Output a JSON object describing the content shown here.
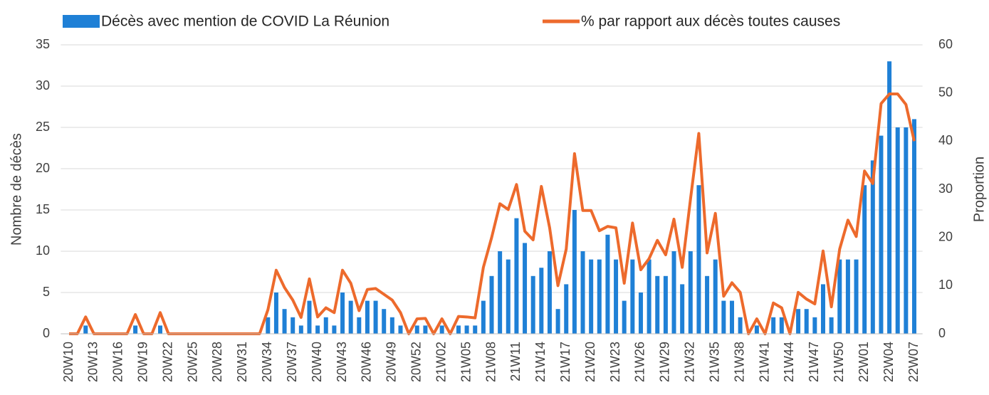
{
  "chart_data": {
    "type": "bar-line",
    "ylabel": "Nombre de décès",
    "y2label": "Proportion",
    "categories": [
      "20W10",
      null,
      null,
      "20W13",
      null,
      null,
      "20W16",
      null,
      null,
      "20W19",
      null,
      null,
      "20W22",
      null,
      null,
      "20W25",
      null,
      null,
      "20W28",
      null,
      null,
      "20W31",
      null,
      null,
      "20W34",
      null,
      null,
      "20W37",
      null,
      null,
      "20W40",
      null,
      null,
      "20W43",
      null,
      null,
      "20W46",
      null,
      null,
      "20W49",
      null,
      null,
      "20W52",
      null,
      null,
      "21W02",
      null,
      null,
      "21W05",
      null,
      null,
      "21W08",
      null,
      null,
      "21W11",
      null,
      null,
      "21W14",
      null,
      null,
      "21W17",
      null,
      null,
      "21W20",
      null,
      null,
      "21W23",
      null,
      null,
      "21W26",
      null,
      null,
      "21W29",
      null,
      null,
      "21W32",
      null,
      null,
      "21W35",
      null,
      null,
      "21W38",
      null,
      null,
      "21W41",
      null,
      null,
      "21W44",
      null,
      null,
      "21W47",
      null,
      null,
      "21W50",
      null,
      null,
      "22W01",
      null,
      null,
      "22W04",
      null,
      null,
      "22W07"
    ],
    "series": [
      {
        "name": "Décès avec mention de COVID La Réunion",
        "type": "bar",
        "color": "#1f80d6",
        "values": [
          0,
          0,
          1,
          0,
          0,
          0,
          0,
          0,
          1,
          0,
          0,
          1,
          0,
          0,
          0,
          0,
          0,
          0,
          0,
          0,
          0,
          0,
          0,
          0,
          2,
          5,
          3,
          2,
          1,
          4,
          1,
          2,
          1,
          5,
          4,
          2,
          4,
          4,
          3,
          2,
          1,
          0,
          1,
          1,
          0,
          1,
          0,
          1,
          1,
          1,
          4,
          7,
          10,
          9,
          14,
          11,
          7,
          8,
          10,
          3,
          6,
          15,
          10,
          9,
          9,
          12,
          9,
          4,
          9,
          5,
          9,
          7,
          7,
          10,
          6,
          10,
          18,
          7,
          9,
          4,
          4,
          2,
          0,
          1,
          0,
          2,
          2,
          0,
          3,
          3,
          2,
          6,
          2,
          9,
          9,
          9,
          18,
          21,
          24,
          33,
          25,
          25,
          26
        ]
      },
      {
        "name": "% par rapport aux décès toutes causes",
        "type": "line",
        "axis": "y2",
        "color": "#ed6a2c",
        "values": [
          0,
          0,
          3.5,
          0,
          0,
          0,
          0,
          0,
          4,
          0,
          0,
          4.4,
          0,
          0,
          0,
          0,
          0,
          0,
          0,
          0,
          0,
          0,
          0,
          0,
          5,
          13.2,
          9.6,
          7,
          3.4,
          11.4,
          3.5,
          5.4,
          4.4,
          13.2,
          10.5,
          4.8,
          9.2,
          9.4,
          8.2,
          7,
          4.4,
          0,
          3.1,
          3.2,
          0,
          3.1,
          0,
          3.6,
          3.5,
          3.3,
          13.8,
          20,
          27,
          25.8,
          31,
          21.3,
          19.5,
          30.6,
          22,
          10,
          17.6,
          37.4,
          25.6,
          25.6,
          21.4,
          22.3,
          22,
          10.5,
          23,
          13.3,
          15.6,
          19.4,
          16.4,
          23.8,
          13.8,
          28,
          41.6,
          16.8,
          25,
          7.8,
          10.6,
          8.6,
          0,
          3.1,
          0,
          6.4,
          5.4,
          0,
          8.6,
          7.2,
          6.2,
          17.2,
          5.6,
          17.6,
          23.6,
          20.2,
          33.8,
          31.2,
          47.8,
          49.8,
          49.8,
          47.6,
          40
        ]
      }
    ],
    "ylim": [
      0,
      35
    ],
    "yticks": [
      0,
      5,
      10,
      15,
      20,
      25,
      30,
      35
    ],
    "y2lim": [
      0,
      60
    ],
    "y2ticks": [
      0,
      10,
      20,
      30,
      40,
      50,
      60
    ],
    "grid": true,
    "legend": "top"
  }
}
